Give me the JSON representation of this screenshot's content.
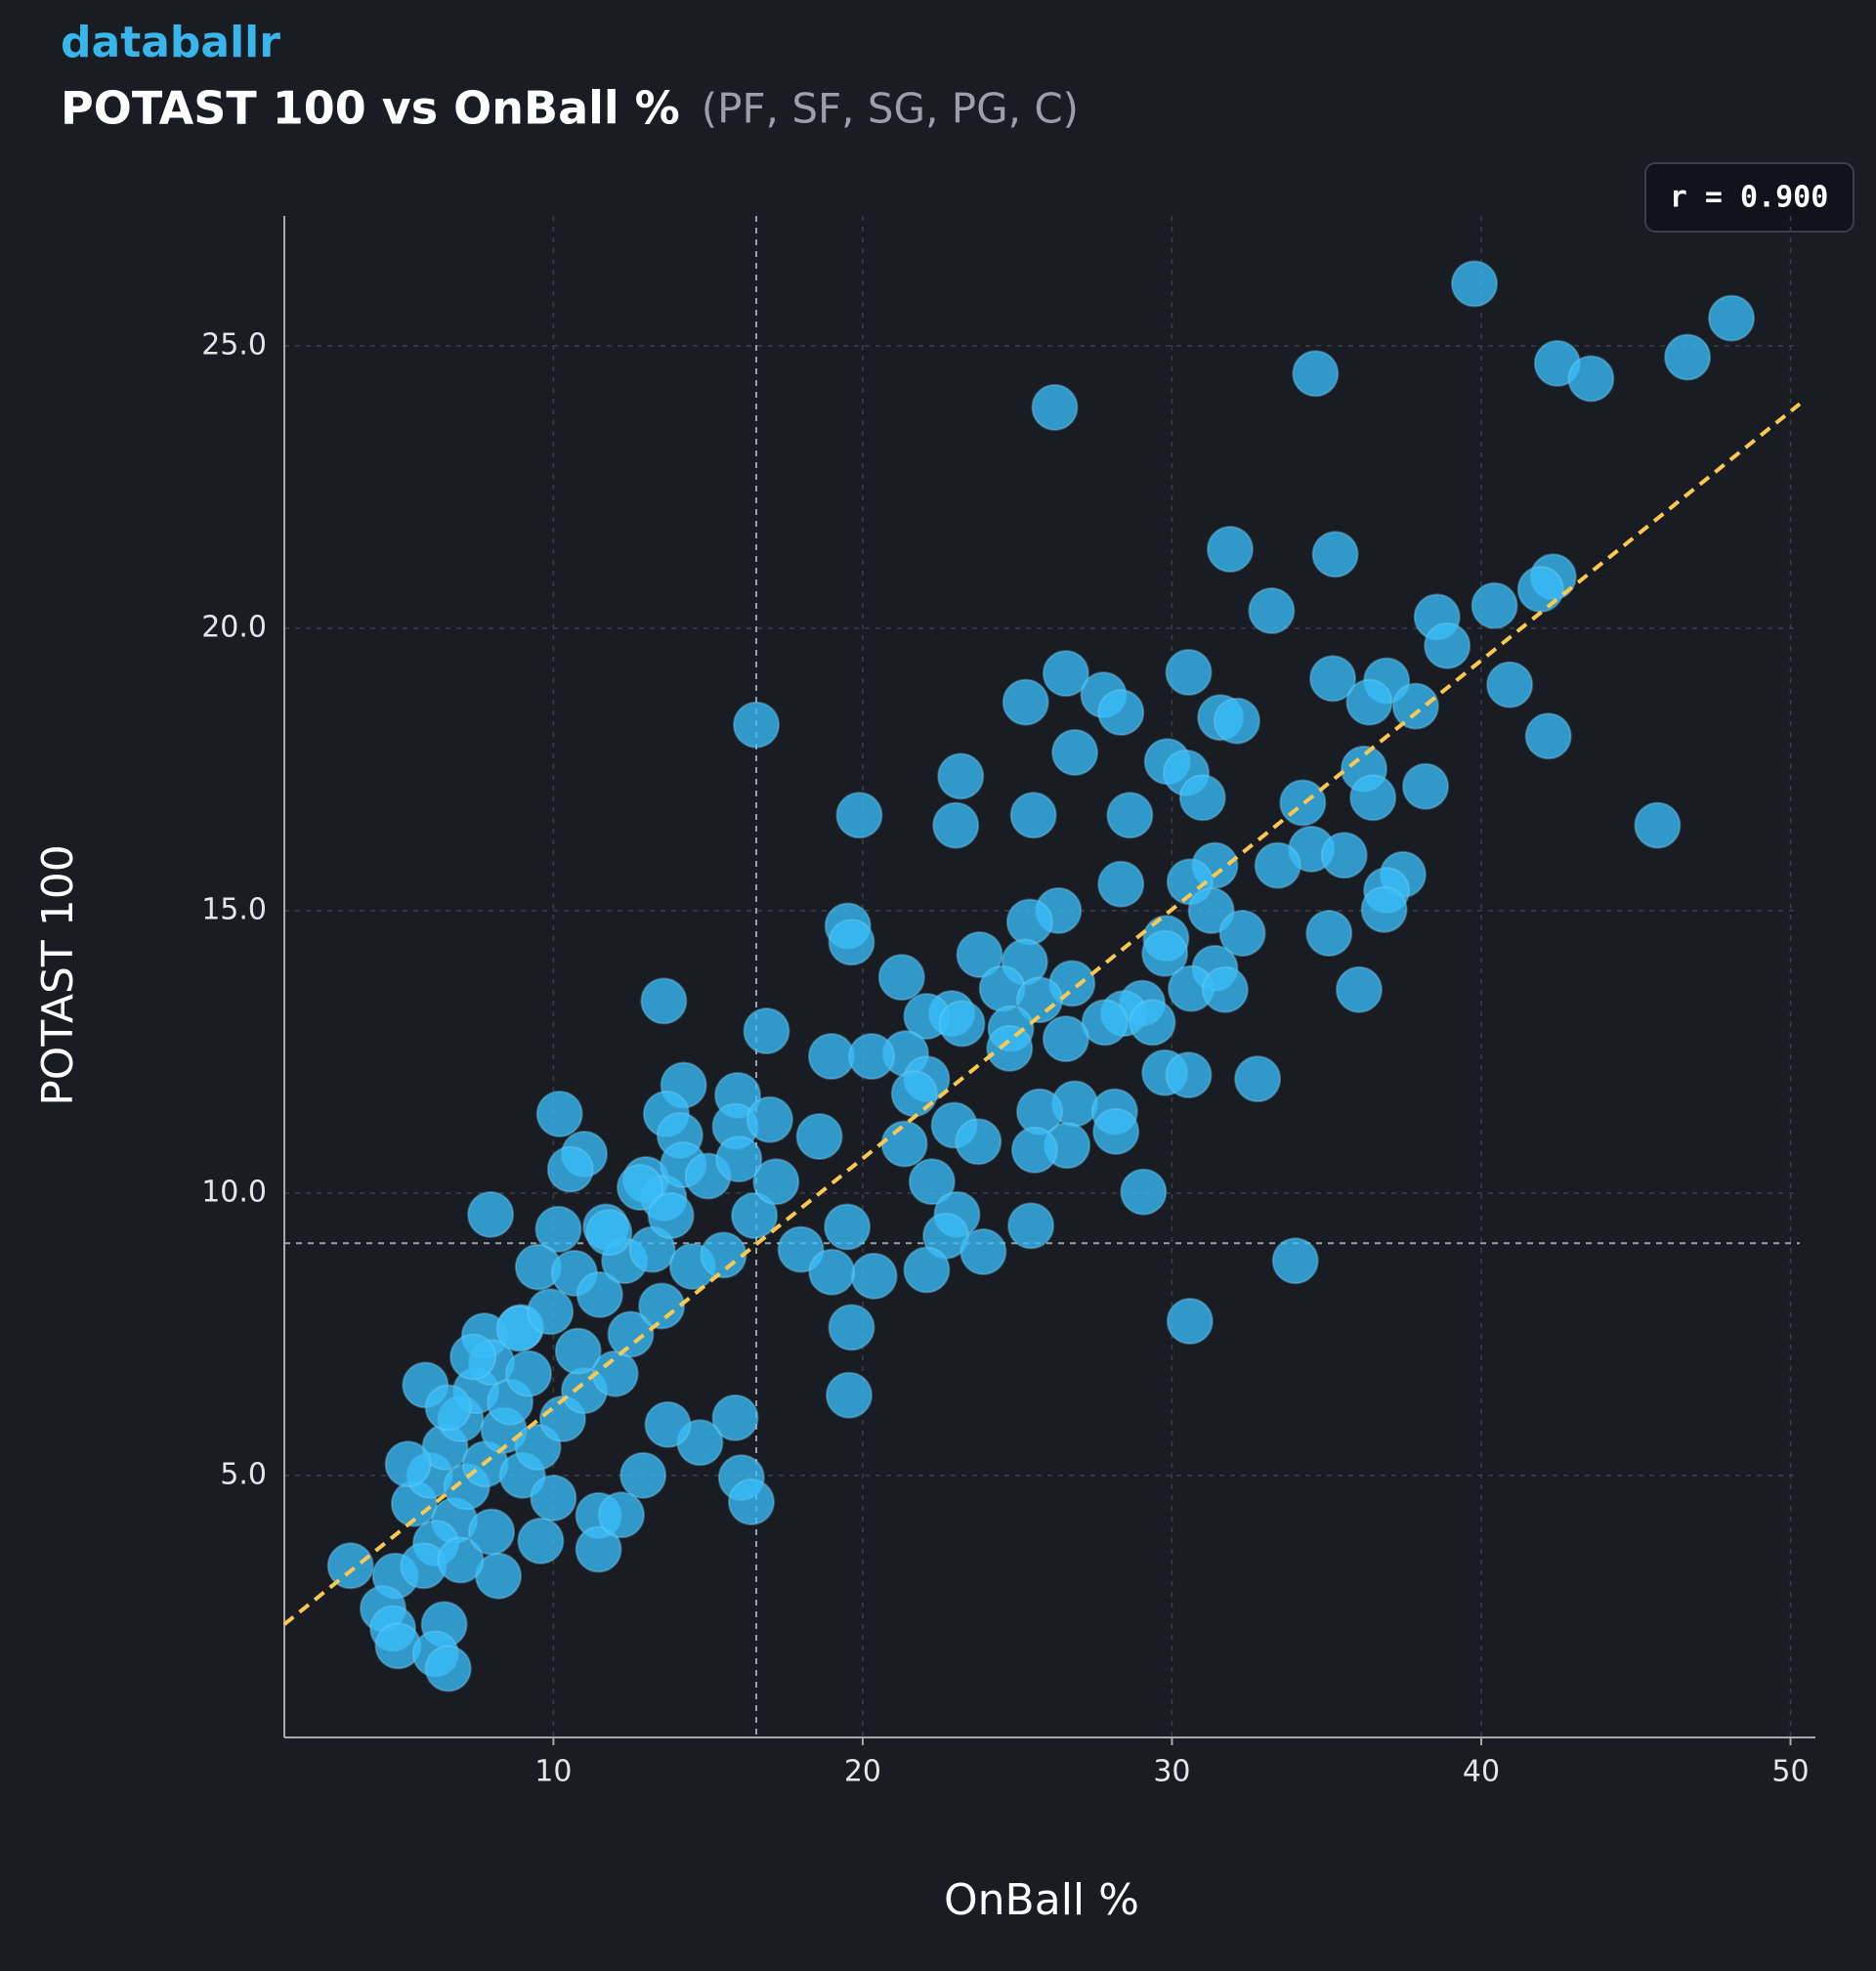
{
  "brand": "databallr",
  "chart_data": {
    "type": "scatter",
    "title": "POTAST 100 vs OnBall %",
    "subtitle": "(PF, SF, SG, PG, C)",
    "xlabel": "OnBall %",
    "ylabel": "POTAST 100",
    "annotation": "r = 0.900",
    "color": "#38bdf8",
    "xlim": [
      1.3,
      50.3
    ],
    "ylim": [
      0.36,
      27.3
    ],
    "xticks": [
      10,
      20,
      30,
      40,
      50
    ],
    "yticks": [
      {
        "value": 5,
        "label": "5.0"
      },
      {
        "value": 10,
        "label": "10.0"
      },
      {
        "value": 15,
        "label": "15.0"
      },
      {
        "value": 20,
        "label": "20.0"
      },
      {
        "value": 25,
        "label": "25.0"
      }
    ],
    "grid": true,
    "reference_x": 16.56,
    "reference_y": 9.11,
    "trendline": {
      "slope": 0.441,
      "intercept": 1.79,
      "color": "#fcc850"
    },
    "x": [
      39.78,
      48.09,
      46.67,
      42.46,
      43.55,
      34.64,
      26.21,
      31.88,
      35.28,
      42.33,
      41.92,
      33.22,
      40.43,
      38.57,
      38.9,
      30.54,
      26.57,
      35.2,
      36.94,
      40.92,
      27.79,
      25.27,
      28.35,
      36.38,
      37.88,
      31.57,
      32.1,
      16.56,
      42.17,
      26.86,
      29.85,
      30.46,
      23.17,
      36.21,
      30.99,
      38.2,
      36.5,
      34.23,
      19.89,
      25.52,
      28.64,
      23.01,
      45.7,
      34.51,
      35.57,
      33.42,
      31.39,
      30.58,
      37.47,
      28.35,
      36.94,
      36.86,
      26.33,
      31.27,
      25.4,
      19.52,
      32.28,
      29.81,
      35.08,
      19.64,
      29.77,
      23.78,
      25.24,
      21.26,
      31.39,
      26.77,
      24.51,
      30.62,
      36.05,
      31.72,
      13.57,
      25.72,
      22.88,
      22.07,
      29.04,
      28.44,
      27.83,
      23.21,
      29.37,
      16.89,
      24.79,
      26.57,
      21.39,
      18.99,
      20.29,
      24.75,
      29.77,
      30.54,
      32.77,
      22.07,
      14.21,
      15.96,
      21.67,
      13.65,
      10.2,
      26.86,
      25.72,
      28.15,
      22.96,
      15.88,
      14.09,
      28.19,
      23.74,
      21.35,
      26.61,
      25.56,
      11.0,
      10.55,
      12.99,
      29.08,
      22.24,
      13.57,
      23.05,
      7.97,
      25.44,
      11.7,
      10.16,
      22.69,
      23.9,
      9.51,
      22.07,
      33.99,
      20.37,
      10.68,
      30.58,
      19.64,
      8.95,
      7.77,
      19.56,
      5.86,
      15.88,
      14.74,
      16.08,
      16.4,
      11.46,
      9.59,
      11.46,
      3.44,
      8.22,
      4.89,
      4.49,
      4.81,
      6.47,
      4.98,
      6.19,
      6.6,
      5.5,
      6,
      6.5,
      7,
      7.5,
      8,
      6.8,
      7.2,
      7.8,
      8.4,
      6.2,
      5.8,
      7,
      8,
      9,
      9.5,
      8.6,
      7.4,
      6.6,
      5.3,
      9.2,
      10.3,
      11,
      10.8,
      12,
      12.5,
      11.5,
      12.3,
      13.2,
      11.8,
      12.8,
      14.2,
      13.8,
      15,
      14.5,
      13.5,
      15.5,
      16.5,
      17.2,
      18,
      19,
      19.5,
      18.6,
      17,
      16,
      12.9,
      10,
      13.7,
      12.2,
      8.9,
      9.9
    ],
    "values": [
      26.1,
      25.49,
      24.8,
      24.69,
      24.42,
      24.51,
      23.91,
      21.4,
      21.31,
      20.91,
      20.69,
      20.31,
      20.4,
      20.2,
      19.69,
      19.22,
      19.2,
      19.11,
      19.07,
      19.0,
      18.82,
      18.69,
      18.51,
      18.69,
      18.62,
      18.42,
      18.36,
      18.29,
      18.09,
      17.8,
      17.64,
      17.44,
      17.38,
      17.51,
      17.0,
      17.2,
      17.0,
      16.91,
      16.69,
      16.69,
      16.69,
      16.51,
      16.51,
      16.09,
      15.98,
      15.8,
      15.8,
      15.51,
      15.64,
      15.47,
      15.36,
      15.02,
      15.0,
      15.0,
      14.8,
      14.73,
      14.6,
      14.51,
      14.6,
      14.44,
      14.24,
      14.22,
      14.09,
      13.82,
      13.98,
      13.71,
      13.62,
      13.62,
      13.6,
      13.6,
      13.4,
      13.42,
      13.18,
      13.13,
      13.36,
      13.18,
      13.02,
      13.0,
      13.02,
      12.87,
      12.91,
      12.73,
      12.47,
      12.42,
      12.42,
      12.56,
      12.13,
      12.09,
      12.02,
      12.02,
      11.91,
      11.73,
      11.76,
      11.4,
      11.4,
      11.58,
      11.44,
      11.44,
      11.2,
      11.18,
      11.02,
      11.09,
      10.91,
      10.87,
      10.84,
      10.76,
      10.69,
      10.42,
      10.24,
      10.02,
      10.2,
      9.91,
      9.62,
      9.62,
      9.42,
      9.4,
      9.36,
      9.24,
      8.96,
      8.69,
      8.64,
      8.8,
      8.53,
      8.58,
      7.73,
      7.62,
      7.62,
      7.47,
      6.42,
      6.6,
      6.02,
      5.58,
      4.96,
      4.53,
      4.29,
      3.84,
      3.69,
      3.4,
      3.22,
      3.22,
      2.64,
      2.29,
      2.36,
      1.98,
      1.84,
      1.58,
      4.5,
      5,
      5.5,
      6,
      6.5,
      7,
      4.2,
      4.8,
      5.2,
      5.8,
      3.8,
      3.4,
      3.5,
      4,
      5,
      5.5,
      6.3,
      7.1,
      6.2,
      5.2,
      6.8,
      6,
      6.5,
      7.2,
      6.8,
      7.5,
      8.2,
      8.8,
      9,
      9.3,
      10.1,
      10.5,
      9.6,
      10.3,
      8.7,
      8,
      8.9,
      9.6,
      10.2,
      9,
      8.6,
      9.4,
      11,
      11.3,
      10.6,
      5,
      4.6,
      5.9,
      4.3,
      7.6,
      7.9
    ]
  }
}
